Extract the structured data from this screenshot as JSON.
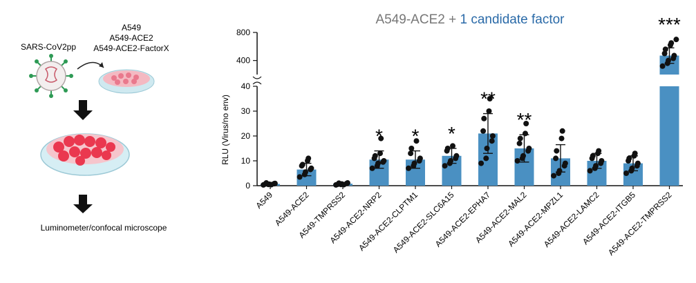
{
  "schematic": {
    "virus_label": "SARS-CoV2pp",
    "cells": [
      "A549",
      "A549-ACE2",
      "A549-ACE2-FactorX"
    ],
    "readout": "Luminometer/confocal microscope"
  },
  "colors": {
    "bar": "#4a90c2",
    "title_main": "#777777",
    "title_accent": "#2a6aa8",
    "dot": "#111111"
  },
  "chart_data": {
    "type": "bar",
    "title_parts": [
      "A549-ACE2 + ",
      "1 candidate factor"
    ],
    "ylabel": "RLU (Virus/no env)",
    "axis": "broken",
    "lower_ylim": [
      0,
      40
    ],
    "lower_ticks": [
      0,
      10,
      20,
      30,
      40
    ],
    "upper_ylim": [
      200,
      800
    ],
    "upper_ticks": [
      400,
      800
    ],
    "categories": [
      "A549",
      "A549-ACE2",
      "A549-TMPRSS2",
      "A549-ACE2-NRP2",
      "A549-ACE2-CLPTM1",
      "A549-ACE2-SLC6A15",
      "A549-ACE2-EPHA7",
      "A549-ACE2-MAL2",
      "A549-ACE2-MPZL1",
      "A549-ACE2-LAMC2",
      "A549-ACE2-ITGB5",
      "A549-ACE2-TMPRSS2"
    ],
    "values": [
      0.7,
      6.5,
      0.8,
      10.5,
      10.5,
      12,
      21,
      15,
      11,
      10,
      9,
      470
    ],
    "errors": [
      0.3,
      2.5,
      0.3,
      3.5,
      3.5,
      3,
      8,
      5.5,
      5.5,
      3,
      3,
      110
    ],
    "significance": [
      "",
      "",
      "",
      "*",
      "*",
      "*",
      "**",
      "**",
      "",
      "",
      "",
      "***"
    ],
    "points": [
      [
        0.3,
        0.5,
        0.6,
        0.8,
        0.9,
        0.7,
        1.1,
        0.4
      ],
      [
        3.5,
        4.5,
        5.5,
        6.5,
        7,
        8,
        8.5,
        10,
        11
      ],
      [
        0.3,
        0.5,
        0.7,
        0.9,
        1.1,
        0.6,
        1.0,
        0.4
      ],
      [
        7,
        8,
        9,
        9.5,
        10,
        11,
        12,
        13,
        19
      ],
      [
        7,
        8,
        9,
        10,
        11,
        13,
        15,
        18
      ],
      [
        8,
        9,
        10,
        11,
        12,
        14,
        15,
        16
      ],
      [
        9,
        11,
        15,
        18,
        20,
        22,
        27,
        30,
        35
      ],
      [
        10,
        11,
        12,
        14,
        15,
        17,
        19,
        21,
        25
      ],
      [
        4,
        5,
        6,
        8,
        9,
        11,
        14,
        19,
        22
      ],
      [
        6,
        7,
        8,
        9,
        10,
        11,
        12,
        13,
        14
      ],
      [
        5,
        6,
        7,
        8,
        9,
        10,
        11,
        12,
        13
      ],
      [
        320,
        360,
        400,
        430,
        470,
        500,
        560,
        620,
        650,
        700
      ]
    ]
  }
}
